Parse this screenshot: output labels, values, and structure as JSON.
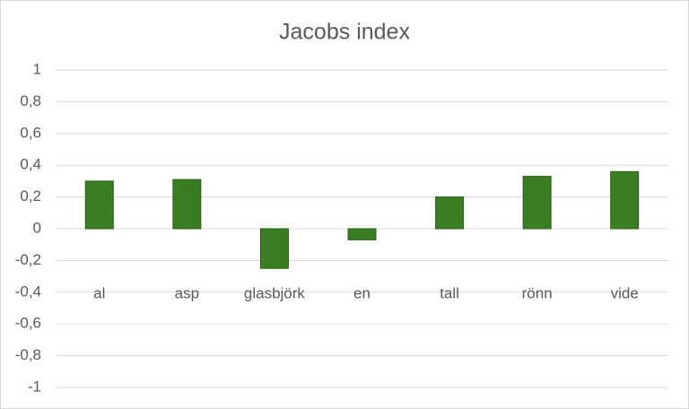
{
  "chart_data": {
    "type": "bar",
    "title": "Jacobs index",
    "categories": [
      "al",
      "asp",
      "glasbjörk",
      "en",
      "tall",
      "rönn",
      "vide"
    ],
    "values": [
      0.3,
      0.31,
      -0.25,
      -0.07,
      0.2,
      0.33,
      0.36
    ],
    "color": "#3a7d22",
    "ylim": [
      -1,
      1
    ],
    "yticks": [
      -1,
      {
        "value": -0.8,
        "label": "-0,8"
      },
      {
        "value": -0.6,
        "label": "-0,6"
      },
      {
        "value": -0.4,
        "label": "-0,4"
      },
      {
        "value": -0.2,
        "label": "-0,2"
      },
      0,
      {
        "value": 0.2,
        "label": "0,2"
      },
      {
        "value": 0.4,
        "label": "0,4"
      },
      {
        "value": 0.6,
        "label": "0,6"
      },
      {
        "value": 0.8,
        "label": "0,8"
      },
      1
    ],
    "grid": true
  }
}
